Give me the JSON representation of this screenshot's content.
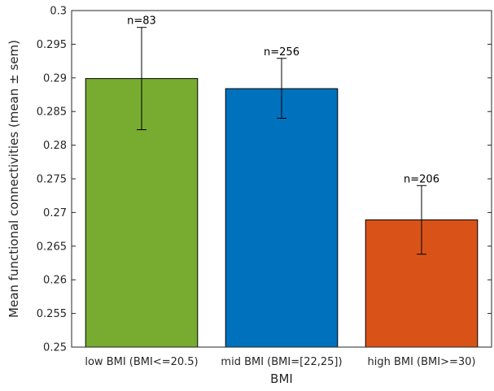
{
  "chart_data": {
    "type": "bar",
    "title": "",
    "xlabel": "BMI",
    "ylabel": "Mean functional connectivities (mean ± sem)",
    "ylim": [
      0.25,
      0.3
    ],
    "yticks": [
      0.25,
      0.255,
      0.26,
      0.265,
      0.27,
      0.275,
      0.28,
      0.285,
      0.29,
      0.295,
      0.3
    ],
    "ytick_labels": [
      "0.25",
      "0.255",
      "0.26",
      "0.265",
      "0.27",
      "0.275",
      "0.28",
      "0.285",
      "0.29",
      "0.295",
      "0.3"
    ],
    "categories": [
      "low BMI (BMI<=20.5)",
      "mid BMI (BMI=[22,25])",
      "high BMI (BMI>=30)"
    ],
    "values": [
      0.2899,
      0.2884,
      0.2689
    ],
    "error_low": [
      0.2823,
      0.284,
      0.2638
    ],
    "error_high": [
      0.2975,
      0.2929,
      0.274
    ],
    "annotations": [
      "n=83",
      "n=256",
      "n=206"
    ],
    "colors": [
      "#77ac30",
      "#0072bd",
      "#d95319"
    ],
    "grid": false,
    "legend": "none"
  }
}
